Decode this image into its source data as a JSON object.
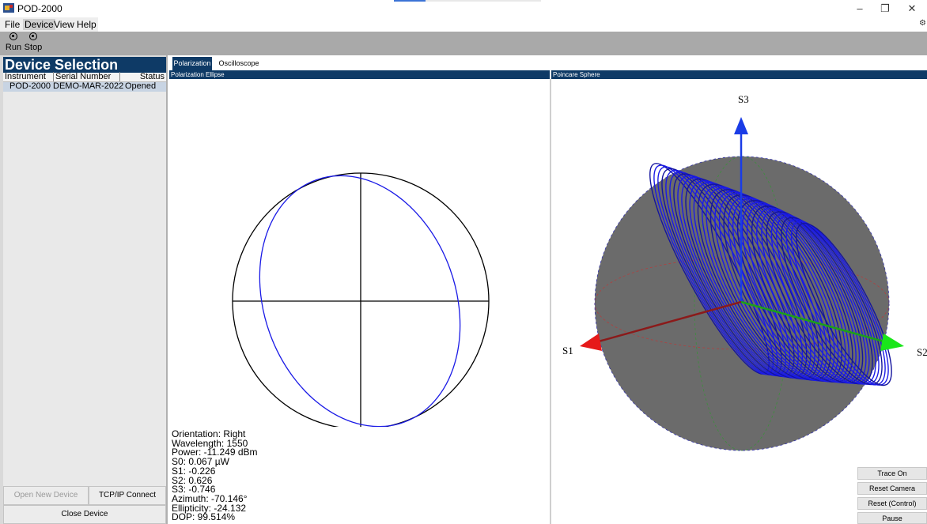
{
  "window": {
    "title": "POD-2000",
    "controls": {
      "minimize": "–",
      "restore": "❐",
      "close": "✕"
    }
  },
  "menu": {
    "items": [
      "File",
      "Device",
      "View",
      "Help"
    ],
    "active": "Device"
  },
  "toolbar": {
    "run_label": "Run",
    "stop_label": "Stop"
  },
  "device_selection": {
    "title": "Device Selection",
    "columns": [
      "Instrument",
      "Serial Number",
      "Status"
    ],
    "rows": [
      {
        "instrument": "POD-2000",
        "serial": "DEMO-MAR-2022",
        "status": "Opened"
      }
    ]
  },
  "left_buttons": {
    "open_new": "Open New Device",
    "tcp_connect": "TCP/IP Connect",
    "close_device": "Close Device"
  },
  "tabs": {
    "items": [
      "Polarization",
      "Oscilloscope"
    ],
    "active": "Polarization"
  },
  "panels": {
    "ellipse_title": "Polarization Ellipse",
    "sphere_title": "Poincare Sphere"
  },
  "readout": {
    "orientation": "Orientation: Right",
    "wavelength": "Wavelength: 1550",
    "power": "Power: -11.249 dBm",
    "s0": "S0: 0.067 µW",
    "s1": "S1: -0.226",
    "s2": "S2: 0.626",
    "s3": "S3: -0.746",
    "azimuth": "Azimuth: -70.146°",
    "ellipticity": "Ellipticity: -24.132",
    "dop": "DOP: 99.514%"
  },
  "sphere_axes": {
    "s1": "S1",
    "s2": "S2",
    "s3": "S3"
  },
  "side_buttons": {
    "trace": "Trace On",
    "reset_camera": "Reset Camera",
    "reset_control": "Reset (Control)",
    "pause": "Pause"
  },
  "colors": {
    "header_blue": "#0e3a66",
    "trace_blue": "#1a1ae6",
    "sphere_gray": "#6b6b6b",
    "axis_red": "#e61a1a",
    "axis_green": "#1ae61a",
    "axis_blue": "#1a3ce6"
  }
}
